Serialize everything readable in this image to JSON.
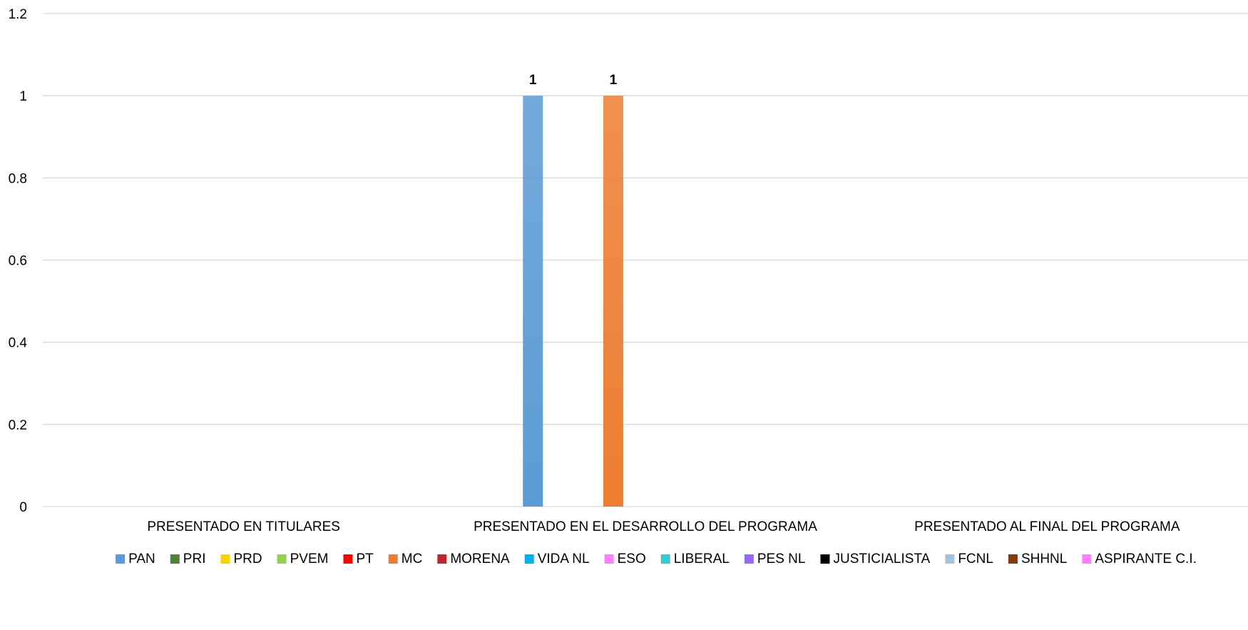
{
  "chart_data": {
    "type": "bar",
    "title": "",
    "xlabel": "",
    "ylabel": "",
    "ylim": [
      0,
      1.2
    ],
    "y_ticks": [
      "0",
      "0.2",
      "0.4",
      "0.6",
      "0.8",
      "1",
      "1.2"
    ],
    "grid": true,
    "legend_position": "bottom",
    "categories": [
      "PRESENTADO EN TITULARES",
      "PRESENTADO EN EL DESARROLLO DEL PROGRAMA",
      "PRESENTADO AL FINAL DEL PROGRAMA"
    ],
    "series": [
      {
        "name": "PAN",
        "color": "#5b9bd5",
        "values": [
          null,
          1,
          null
        ]
      },
      {
        "name": "PRI",
        "color": "#548235",
        "values": [
          null,
          null,
          null
        ]
      },
      {
        "name": "PRD",
        "color": "#ffd200",
        "values": [
          null,
          null,
          null
        ]
      },
      {
        "name": "PVEM",
        "color": "#92d050",
        "values": [
          null,
          null,
          null
        ]
      },
      {
        "name": "PT",
        "color": "#ff0000",
        "values": [
          null,
          null,
          null
        ]
      },
      {
        "name": "MC",
        "color": "#ed7d31",
        "values": [
          null,
          1,
          null
        ]
      },
      {
        "name": "MORENA",
        "color": "#c0272d",
        "values": [
          null,
          null,
          null
        ]
      },
      {
        "name": "VIDA NL",
        "color": "#00b0f0",
        "values": [
          null,
          null,
          null
        ]
      },
      {
        "name": "ESO",
        "color": "#ff80ff",
        "values": [
          null,
          null,
          null
        ]
      },
      {
        "name": "LIBERAL",
        "color": "#33cccc",
        "values": [
          null,
          null,
          null
        ]
      },
      {
        "name": "PES NL",
        "color": "#9966ff",
        "values": [
          null,
          null,
          null
        ]
      },
      {
        "name": "JUSTICIALISTA",
        "color": "#000000",
        "values": [
          null,
          null,
          null
        ]
      },
      {
        "name": "FCNL",
        "color": "#9dc3e6",
        "values": [
          null,
          null,
          null
        ]
      },
      {
        "name": "SHHNL",
        "color": "#843c0c",
        "values": [
          null,
          null,
          null
        ]
      },
      {
        "name": "ASPIRANTE C.I.",
        "color": "#ff80ff",
        "values": [
          null,
          null,
          null
        ]
      }
    ],
    "data_labels": true
  }
}
